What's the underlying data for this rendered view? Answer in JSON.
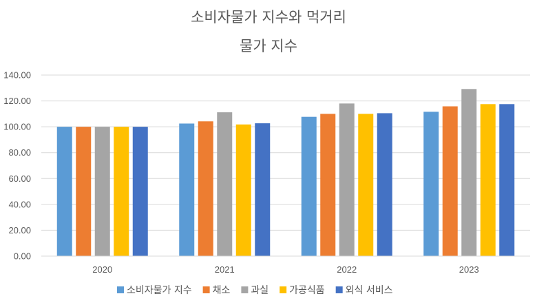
{
  "chart_data": {
    "type": "bar",
    "title_lines": [
      "소비자물가 지수와 먹거리",
      "물가 지수"
    ],
    "categories": [
      "2020",
      "2021",
      "2022",
      "2023"
    ],
    "series": [
      {
        "name": "소비자물가 지수",
        "color": "#5B9BD5",
        "values": [
          100.0,
          102.5,
          107.7,
          111.6
        ]
      },
      {
        "name": "채소",
        "color": "#ED7D31",
        "values": [
          100.0,
          104.2,
          110.0,
          115.8
        ]
      },
      {
        "name": "과실",
        "color": "#A5A5A5",
        "values": [
          100.0,
          111.2,
          118.0,
          129.2
        ]
      },
      {
        "name": "가공식품",
        "color": "#FFC000",
        "values": [
          100.0,
          101.8,
          110.0,
          117.5
        ]
      },
      {
        "name": "외식 서비스",
        "color": "#4472C4",
        "values": [
          100.0,
          102.7,
          110.5,
          117.5
        ]
      }
    ],
    "ylim": [
      0,
      140
    ],
    "ytick_labels": [
      "0.00",
      "20.00",
      "40.00",
      "60.00",
      "80.00",
      "100.00",
      "120.00",
      "140.00"
    ],
    "grid": true,
    "legend_position": "bottom"
  }
}
